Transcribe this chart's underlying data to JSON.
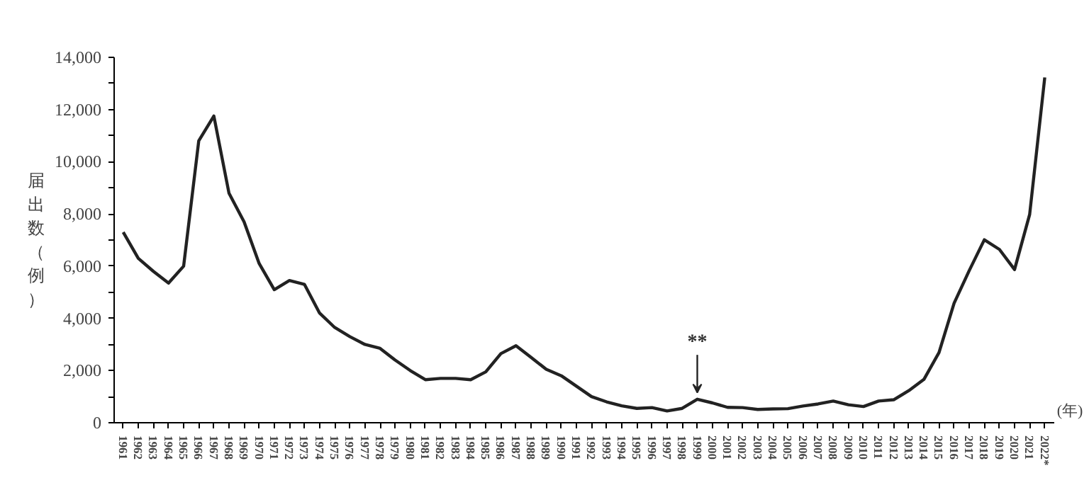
{
  "chart_data": {
    "type": "line",
    "ylabel": "届出数（例）",
    "xlabel": "(年)",
    "categories": [
      "1961",
      "1962",
      "1963",
      "1964",
      "1965",
      "1966",
      "1967",
      "1968",
      "1969",
      "1970",
      "1971",
      "1972",
      "1973",
      "1974",
      "1975",
      "1976",
      "1977",
      "1978",
      "1979",
      "1980",
      "1981",
      "1982",
      "1983",
      "1984",
      "1985",
      "1986",
      "1987",
      "1988",
      "1989",
      "1990",
      "1991",
      "1992",
      "1993",
      "1994",
      "1995",
      "1996",
      "1997",
      "1998",
      "1999",
      "2000",
      "2001",
      "2002",
      "2003",
      "2004",
      "2005",
      "2006",
      "2007",
      "2008",
      "2009",
      "2010",
      "2011",
      "2012",
      "2013",
      "2014",
      "2015",
      "2016",
      "2017",
      "2018",
      "2019",
      "2020",
      "2021",
      "2022*"
    ],
    "series": [
      {
        "color": "#222222",
        "values": [
          7300,
          6300,
          5800,
          5350,
          6000,
          10800,
          11750,
          8800,
          7700,
          6100,
          5100,
          5450,
          5300,
          4200,
          3650,
          3300,
          3000,
          2850,
          2400,
          2000,
          1650,
          1700,
          1700,
          1650,
          1950,
          2650,
          2950,
          2500,
          2050,
          1800,
          1400,
          1000,
          800,
          650,
          550,
          580,
          450,
          550,
          900,
          760,
          590,
          580,
          510,
          530,
          540,
          640,
          720,
          830,
          690,
          620,
          830,
          880,
          1230,
          1660,
          2690,
          4580,
          5830,
          7010,
          6640,
          5870,
          7980,
          13230
        ]
      }
    ],
    "ylim": [
      0,
      14000
    ],
    "yticks": [
      0,
      {
        "value": 1000,
        "label": null
      },
      {
        "value": 2000,
        "label": "2,000"
      },
      {
        "value": 3000,
        "label": null
      },
      {
        "value": 4000,
        "label": "4,000"
      },
      {
        "value": 5000,
        "label": null
      },
      {
        "value": 6000,
        "label": "6,000"
      },
      {
        "value": 7000,
        "label": null
      },
      {
        "value": 8000,
        "label": "8,000"
      },
      {
        "value": 9000,
        "label": null
      },
      {
        "value": 10000,
        "label": "10,000"
      },
      {
        "value": 11000,
        "label": null
      },
      {
        "value": 12000,
        "label": "12,000"
      },
      {
        "value": 13000,
        "label": null
      },
      {
        "value": 14000,
        "label": "14,000"
      }
    ],
    "annotations": [
      {
        "text": "**",
        "x": "1999",
        "y": 900
      }
    ],
    "grid": false,
    "marker": "none",
    "line_style": "solid"
  }
}
